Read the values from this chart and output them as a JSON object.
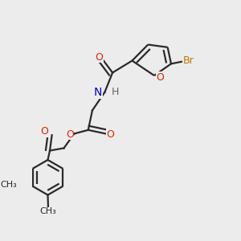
{
  "bg_color": "#ececec",
  "bond_color": "#2a2a2a",
  "bond_width": 1.6,
  "dbo": 0.018,
  "figsize": [
    3.0,
    3.0
  ],
  "dpi": 100,
  "colors": {
    "O": "#dd2200",
    "N": "#0000cc",
    "H": "#666666",
    "Br": "#bb7700",
    "C": "#2a2a2a"
  }
}
